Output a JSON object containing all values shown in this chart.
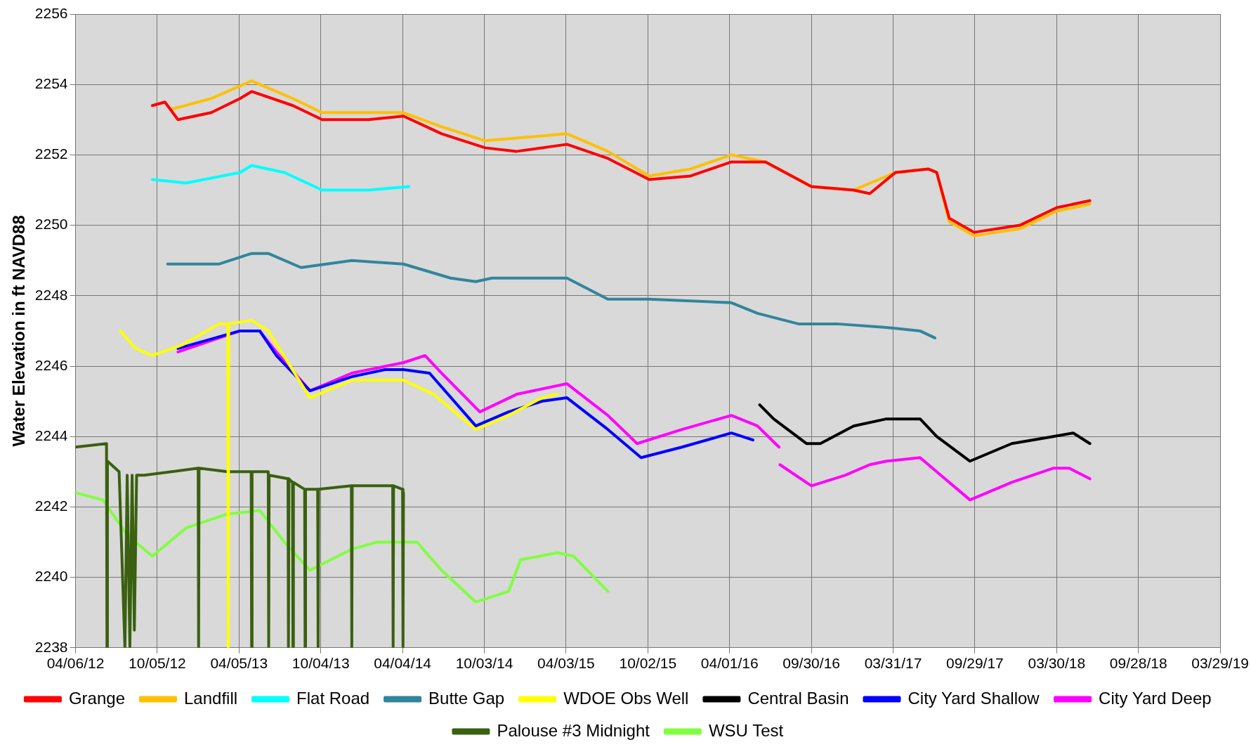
{
  "chart_data": {
    "type": "line",
    "ylabel": "Water Elevation in ft NAVD88",
    "xlim": [
      "2012-04-06",
      "2019-03-29"
    ],
    "xticks": [
      {
        "value": "2012-04-06",
        "label": "04/06/12"
      },
      {
        "value": "2012-10-05",
        "label": "10/05/12"
      },
      {
        "value": "2013-04-05",
        "label": "04/05/13"
      },
      {
        "value": "2013-10-04",
        "label": "10/04/13"
      },
      {
        "value": "2014-04-04",
        "label": "04/04/14"
      },
      {
        "value": "2014-10-03",
        "label": "10/03/14"
      },
      {
        "value": "2015-04-03",
        "label": "04/03/15"
      },
      {
        "value": "2015-10-02",
        "label": "10/02/15"
      },
      {
        "value": "2016-04-01",
        "label": "04/01/16"
      },
      {
        "value": "2016-09-30",
        "label": "09/30/16"
      },
      {
        "value": "2017-03-31",
        "label": "03/31/17"
      },
      {
        "value": "2017-09-29",
        "label": "09/29/17"
      },
      {
        "value": "2018-03-30",
        "label": "03/30/18"
      },
      {
        "value": "2018-09-28",
        "label": "09/28/18"
      },
      {
        "value": "2019-03-29",
        "label": "03/29/19"
      }
    ],
    "ylim": [
      2238,
      2256
    ],
    "yticks": [
      2238,
      2240,
      2242,
      2244,
      2246,
      2248,
      2250,
      2252,
      2254,
      2256
    ],
    "grid": true,
    "legend": "bottom",
    "marker": "none",
    "series": [
      {
        "name": "Grange",
        "color": "#ff0000",
        "x": [
          "2012-09-24",
          "2012-10-22",
          "2012-11-20",
          "2013-02-02",
          "2013-04-07",
          "2013-05-03",
          "2013-08-03",
          "2013-10-07",
          "2014-01-18",
          "2014-04-06",
          "2014-06-30",
          "2014-10-05",
          "2014-12-14",
          "2015-04-05",
          "2015-07-05",
          "2015-10-05",
          "2016-01-05",
          "2016-04-05",
          "2016-06-20",
          "2016-09-30",
          "2017-01-02",
          "2017-02-07",
          "2017-04-05",
          "2017-06-17",
          "2017-07-06",
          "2017-08-03",
          "2017-09-27",
          "2018-01-07",
          "2018-03-30",
          "2018-06-12"
        ],
        "values": [
          2253.4,
          2253.5,
          2253.0,
          2253.2,
          2253.6,
          2253.8,
          2253.4,
          2253.0,
          2253.0,
          2253.1,
          2252.6,
          2252.2,
          2252.1,
          2252.3,
          2251.9,
          2251.3,
          2251.4,
          2251.8,
          2251.8,
          2251.1,
          2251.0,
          2250.9,
          2251.5,
          2251.6,
          2251.5,
          2250.2,
          2249.8,
          2250.0,
          2250.5,
          2250.7
        ]
      },
      {
        "name": "Landfill",
        "color": "#ffc000",
        "x": [
          "2012-11-06",
          "2013-02-02",
          "2013-05-03",
          "2013-08-03",
          "2013-10-07",
          "2014-01-18",
          "2014-04-06",
          "2014-06-30",
          "2014-10-05",
          "2015-04-05",
          "2015-07-05",
          "2015-10-05",
          "2016-01-05",
          "2016-04-05",
          "2016-06-20",
          "2016-09-30",
          "2017-01-02",
          "2017-04-05",
          "2017-06-17",
          "2017-07-06",
          "2017-08-03",
          "2017-09-27",
          "2018-01-07",
          "2018-03-30",
          "2018-06-12"
        ],
        "values": [
          2253.3,
          2253.6,
          2254.1,
          2253.6,
          2253.2,
          2253.2,
          2253.2,
          2252.8,
          2252.4,
          2252.6,
          2252.1,
          2251.4,
          2251.6,
          2252.0,
          2251.8,
          2251.1,
          2251.0,
          2251.5,
          2251.6,
          2251.5,
          2250.1,
          2249.7,
          2249.9,
          2250.4,
          2250.6
        ]
      },
      {
        "name": "Flat Road",
        "color": "#00ffff",
        "x": [
          "2012-09-24",
          "2012-12-08",
          "2013-04-07",
          "2013-05-03",
          "2013-07-15",
          "2013-10-07",
          "2014-01-18",
          "2014-04-18"
        ],
        "values": [
          2251.3,
          2251.2,
          2251.5,
          2251.7,
          2251.5,
          2251.0,
          2251.0,
          2251.1
        ]
      },
      {
        "name": "Butte Gap",
        "color": "#31859c",
        "x": [
          "2012-10-28",
          "2013-02-20",
          "2013-05-03",
          "2013-06-09",
          "2013-08-21",
          "2013-12-12",
          "2014-04-06",
          "2014-07-20",
          "2014-09-14",
          "2014-10-20",
          "2015-04-05",
          "2015-07-05",
          "2015-10-05",
          "2016-04-05",
          "2016-06-02",
          "2016-09-01",
          "2016-11-26",
          "2017-03-16",
          "2017-05-30",
          "2017-07-02"
        ],
        "values": [
          2248.9,
          2248.9,
          2249.2,
          2249.2,
          2248.8,
          2249.0,
          2248.9,
          2248.5,
          2248.4,
          2248.5,
          2248.5,
          2247.9,
          2247.9,
          2247.8,
          2247.5,
          2247.2,
          2247.2,
          2247.1,
          2247.0,
          2246.8
        ]
      },
      {
        "name": "WDOE Obs Well",
        "color": "#ffff00",
        "x": [
          "2012-07-15",
          "2012-08-18",
          "2012-09-24",
          "2012-11-29",
          "2013-02-20",
          "2013-03-11",
          "2013-03-12",
          "2013-03-13",
          "2013-05-03",
          "2013-06-09",
          "2013-09-10",
          "2013-12-12",
          "2014-04-06",
          "2014-06-12",
          "2014-09-14",
          "2014-11-26",
          "2015-02-08",
          "2015-03-15"
        ],
        "values": [
          2247.0,
          2246.5,
          2246.3,
          2246.6,
          2247.2,
          2247.2,
          2238,
          2247.2,
          2247.3,
          2247.0,
          2245.1,
          2245.6,
          2245.6,
          2245.2,
          2244.2,
          2244.6,
          2245.1,
          2245.2
        ]
      },
      {
        "name": "Central Basin",
        "color": "#000000",
        "x": [
          "2016-06-07",
          "2016-07-08",
          "2016-09-19",
          "2016-10-20",
          "2017-01-02",
          "2017-03-16",
          "2017-05-30",
          "2017-07-06",
          "2017-09-18",
          "2017-12-20",
          "2018-03-22",
          "2018-05-06",
          "2018-06-12"
        ],
        "values": [
          2244.9,
          2244.5,
          2243.8,
          2243.8,
          2244.3,
          2244.5,
          2244.5,
          2244.0,
          2243.3,
          2243.8,
          2244.0,
          2244.1,
          2243.8
        ]
      },
      {
        "name": "City Yard Shallow",
        "color": "#0000ff",
        "x": [
          "2012-11-20",
          "2013-04-07",
          "2013-05-21",
          "2013-06-27",
          "2013-09-10",
          "2013-12-12",
          "2014-02-24",
          "2014-04-06",
          "2014-06-03",
          "2014-09-14",
          "2014-11-26",
          "2015-02-08",
          "2015-04-05",
          "2015-07-05",
          "2015-09-17",
          "2015-12-17",
          "2016-04-05",
          "2016-05-23"
        ],
        "values": [
          2246.5,
          2247.0,
          2247.0,
          2246.3,
          2245.3,
          2245.7,
          2245.9,
          2245.9,
          2245.8,
          2244.3,
          2244.7,
          2245.0,
          2245.1,
          2244.2,
          2243.4,
          2243.7,
          2244.1,
          2243.9
        ]
      },
      {
        "name": "City Yard Deep",
        "color": "#ff00ff",
        "x": [
          "2012-11-20",
          "2013-04-07",
          "2013-05-21",
          "2013-06-27",
          "2013-09-10",
          "2013-12-12",
          "2014-04-06",
          "2014-05-24",
          "2014-06-30",
          "2014-09-23",
          "2014-12-14",
          "2015-04-05",
          "2015-07-05",
          "2015-09-08",
          "2015-12-17",
          "2016-04-05",
          "2016-06-02",
          "2016-07-20",
          "2016-07-21",
          "2016-07-22",
          "2016-09-30",
          "2016-12-14",
          "2017-02-07",
          "2017-03-16",
          "2017-05-30",
          "2017-07-15",
          "2017-09-18",
          "2017-12-20",
          "2018-03-22",
          "2018-04-27",
          "2018-06-12"
        ],
        "values": [
          2246.4,
          2247.0,
          2247.0,
          2246.4,
          2245.3,
          2245.8,
          2246.1,
          2246.3,
          2245.8,
          2244.7,
          2245.2,
          2245.5,
          2244.6,
          2243.8,
          2244.2,
          2244.6,
          2244.3,
          2243.7,
          null,
          2243.2,
          2242.6,
          2242.9,
          2243.2,
          2243.3,
          2243.4,
          2242.9,
          2242.2,
          2242.7,
          2243.1,
          2243.1,
          2242.8
        ]
      },
      {
        "name": "Palouse #3 Midnight",
        "color": "#3a6010",
        "x": [
          "2012-04-06",
          "2012-06-14",
          "2012-06-15",
          "2012-06-16",
          "2012-07-12",
          "2012-07-25",
          "2012-07-30",
          "2012-08-05",
          "2012-08-10",
          "2012-08-15",
          "2012-08-20",
          "2012-09-06",
          "2013-01-04",
          "2013-01-05",
          "2013-01-06",
          "2013-03-10",
          "2013-05-02",
          "2013-05-03",
          "2013-05-04",
          "2013-06-09",
          "2013-06-10",
          "2013-06-11",
          "2013-07-23",
          "2013-07-24",
          "2013-07-25",
          "2013-08-02",
          "2013-08-03",
          "2013-08-04",
          "2013-08-29",
          "2013-08-30",
          "2013-08-31",
          "2013-09-27",
          "2013-09-28",
          "2013-09-29",
          "2013-12-11",
          "2013-12-12",
          "2013-12-13",
          "2014-03-13",
          "2014-03-14",
          "2014-03-15",
          "2014-04-04",
          "2014-04-05",
          "2014-04-06"
        ],
        "values": [
          2243.7,
          2243.8,
          2238,
          2243.3,
          2243.0,
          2238,
          2242.9,
          2238,
          2242.9,
          2238.5,
          2242.9,
          2242.9,
          2243.1,
          2238,
          2243.1,
          2243.0,
          2243.0,
          2238,
          2243.0,
          2243.0,
          2238,
          2242.9,
          2242.8,
          2238,
          2242.8,
          2242.7,
          2238,
          2242.7,
          2242.5,
          2238,
          2242.5,
          2242.5,
          2238,
          2242.5,
          2242.6,
          2238,
          2242.6,
          2242.6,
          2238,
          2242.6,
          2242.5,
          2238,
          2242.4
        ]
      },
      {
        "name": "WSU Test",
        "color": "#80ff40",
        "x": [
          "2012-04-06",
          "2012-06-06",
          "2012-07-30",
          "2012-09-24",
          "2012-12-08",
          "2013-03-10",
          "2013-05-21",
          "2013-07-15",
          "2013-09-10",
          "2013-12-12",
          "2014-02-06",
          "2014-05-06",
          "2014-06-30",
          "2014-09-14",
          "2014-11-26",
          "2014-12-23",
          "2015-03-15",
          "2015-04-20",
          "2015-07-05"
        ],
        "values": [
          2242.4,
          2242.2,
          2241.2,
          2240.6,
          2241.4,
          2241.8,
          2241.9,
          2241.0,
          2240.2,
          2240.8,
          2241.0,
          2241.0,
          2240.2,
          2239.3,
          2239.6,
          2240.5,
          2240.7,
          2240.6,
          2239.6
        ]
      }
    ]
  }
}
